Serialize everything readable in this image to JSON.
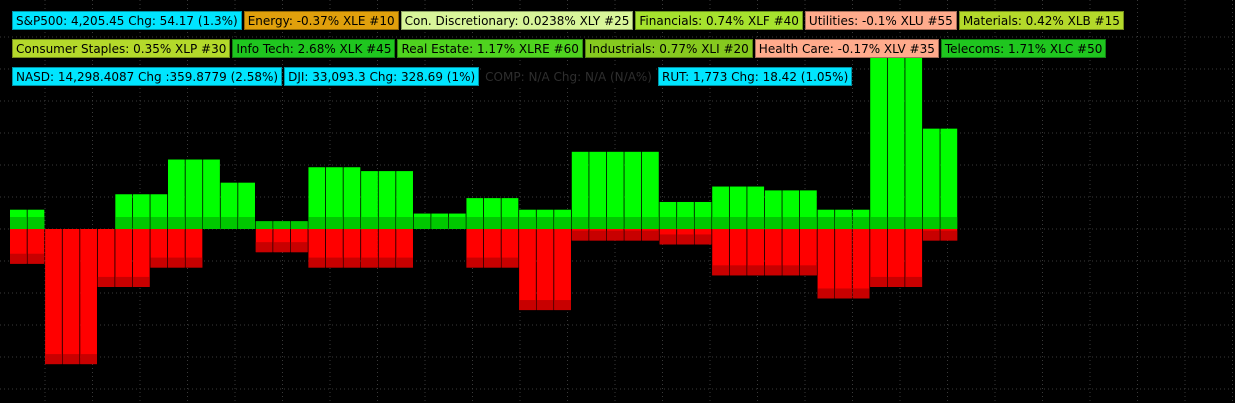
{
  "chart_data": {
    "type": "bar",
    "title": "",
    "xlabel": "",
    "ylabel": "",
    "grid": true,
    "baseline": 0,
    "ylim": [
      -4,
      5
    ],
    "positive": [
      0.5,
      0.5,
      0,
      0,
      0,
      0,
      0.9,
      0.9,
      0.9,
      1.8,
      1.8,
      1.8,
      1.2,
      1.2,
      0.2,
      0.2,
      0.2,
      1.6,
      1.6,
      1.6,
      1.5,
      1.5,
      1.5,
      0.4,
      0.4,
      0.4,
      0.8,
      0.8,
      0.8,
      0.5,
      0.5,
      0.5,
      2.0,
      2.0,
      2.0,
      2.0,
      2.0,
      0.7,
      0.7,
      0.7,
      1.1,
      1.1,
      1.1,
      1.0,
      1.0,
      1.0,
      0.5,
      0.5,
      0.5,
      4.9,
      4.9,
      4.9,
      2.6,
      2.6
    ],
    "negative": [
      -0.9,
      -0.9,
      -3.5,
      -3.5,
      -3.5,
      -1.5,
      -1.5,
      -1.5,
      -1.0,
      -1.0,
      -1.0,
      0,
      0,
      0,
      -0.6,
      -0.6,
      -0.6,
      -1.0,
      -1.0,
      -1.0,
      -1.0,
      -1.0,
      -1.0,
      0,
      0,
      0,
      -1.0,
      -1.0,
      -1.0,
      -2.1,
      -2.1,
      -2.1,
      -0.3,
      -0.3,
      -0.3,
      -0.3,
      -0.3,
      -0.4,
      -0.4,
      -0.4,
      -1.2,
      -1.2,
      -1.2,
      -1.2,
      -1.2,
      -1.2,
      -1.8,
      -1.8,
      -1.8,
      -1.5,
      -1.5,
      -1.5,
      -0.3,
      -0.3
    ]
  },
  "index_labels": [
    {
      "text": "S&P500: 4,205.45 Chg: 54.17  (1.3%)",
      "bg": "#00e5ff"
    },
    {
      "text": "NASD: 14,298.4087 Chg :359.8779  (2.58%)",
      "bg": "#00e5ff"
    },
    {
      "text": "DJI: 33,093.3 Chg: 328.69 (1%)",
      "bg": "#00e5ff"
    },
    {
      "text": "COMP: N/A Chg: N/A (N/A%)",
      "bg": "#000000",
      "fg": "#2e2e2e"
    },
    {
      "text": "RUT: 1,773 Chg: 18.42 (1.05%)",
      "bg": "#00e5ff"
    }
  ],
  "sector_labels": [
    {
      "text": "Energy: -0.37% XLE #10",
      "bg": "#e0a00c"
    },
    {
      "text": "Con. Discretionary: 0.0238% XLY #25",
      "bg": "#d8f59a"
    },
    {
      "text": "Financials: 0.74% XLF #40",
      "bg": "#a6e22e"
    },
    {
      "text": "Utilities: -0.1% XLU #55",
      "bg": "#ffab8c"
    },
    {
      "text": "Materials: 0.42% XLB #15",
      "bg": "#b4d92b"
    },
    {
      "text": "Consumer Staples: 0.35% XLP #30",
      "bg": "#b4d92b"
    },
    {
      "text": "Info Tech: 2.68% XLK #45",
      "bg": "#1fc61f"
    },
    {
      "text": "Real Estate: 1.17% XLRE #60",
      "bg": "#4fd31f"
    },
    {
      "text": "Industrials: 0.77% XLI #20",
      "bg": "#86c91f"
    },
    {
      "text": "Health Care: -0.17% XLV #35",
      "bg": "#ffab8c"
    },
    {
      "text": "Telecoms: 1.71% XLC #50",
      "bg": "#1fc61f"
    }
  ],
  "colors": {
    "positive_bar": "#00ff00",
    "positive_bar_base": "#00c800",
    "negative_bar": "#ff0000",
    "negative_bar_deep": "#c80000",
    "background": "#000000",
    "grid": "#3a3a3a"
  }
}
